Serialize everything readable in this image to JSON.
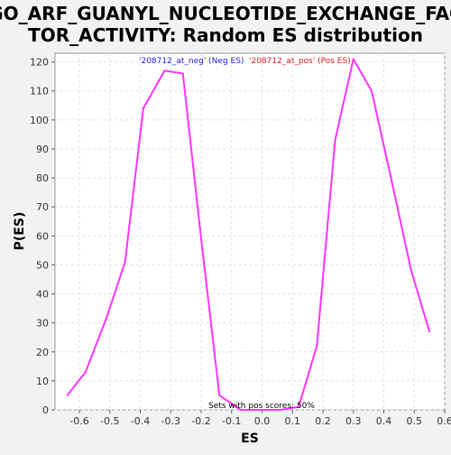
{
  "chart_data": {
    "type": "line",
    "title_lines": [
      "GO_ARF_GUANYL_NUCLEOTIDE_EXCHANGE_FAC",
      "TOR_ACTIVITY: Random ES distribution"
    ],
    "xlabel": "ES",
    "ylabel": "P(ES)",
    "xlim": [
      -0.68,
      0.6
    ],
    "ylim": [
      0,
      123
    ],
    "x_ticks": [
      -0.6,
      -0.5,
      -0.4,
      -0.3,
      -0.2,
      -0.1,
      0.0,
      0.1,
      0.2,
      0.3,
      0.4,
      0.5,
      0.6
    ],
    "x_tick_labels": [
      "-0.6",
      "-0.5",
      "-0.4",
      "-0.3",
      "-0.2",
      "-0.1",
      "0.0",
      "0.1",
      "0.2",
      "0.3",
      "0.4",
      "0.5",
      "0.6"
    ],
    "y_ticks": [
      0,
      10,
      20,
      30,
      40,
      50,
      60,
      70,
      80,
      90,
      100,
      110,
      120
    ],
    "y_tick_labels": [
      "0",
      "10",
      "20",
      "30",
      "40",
      "50",
      "60",
      "70",
      "80",
      "90",
      "100",
      "110",
      "120"
    ],
    "grid": true,
    "legend": [
      {
        "text": "'208712_at_neg' (Neg ES)",
        "color": "#2222dd"
      },
      {
        "text": "'208712_at_pos' (Pos ES)",
        "color": "#dd2222"
      }
    ],
    "annotation": "Sets with pos scores: 50%",
    "series": [
      {
        "color": "#ff33ff",
        "x": [
          -0.64,
          -0.58,
          -0.51,
          -0.45,
          -0.39,
          -0.32,
          -0.26,
          -0.2,
          -0.14,
          -0.07,
          0.0,
          0.06,
          0.12,
          0.18,
          0.24,
          0.3,
          0.36,
          0.43,
          0.49,
          0.55
        ],
        "y": [
          5,
          13,
          32,
          51,
          104,
          117,
          116,
          59,
          5,
          0,
          0,
          0,
          1,
          22,
          93,
          121,
          110,
          77,
          48,
          27
        ]
      }
    ]
  }
}
